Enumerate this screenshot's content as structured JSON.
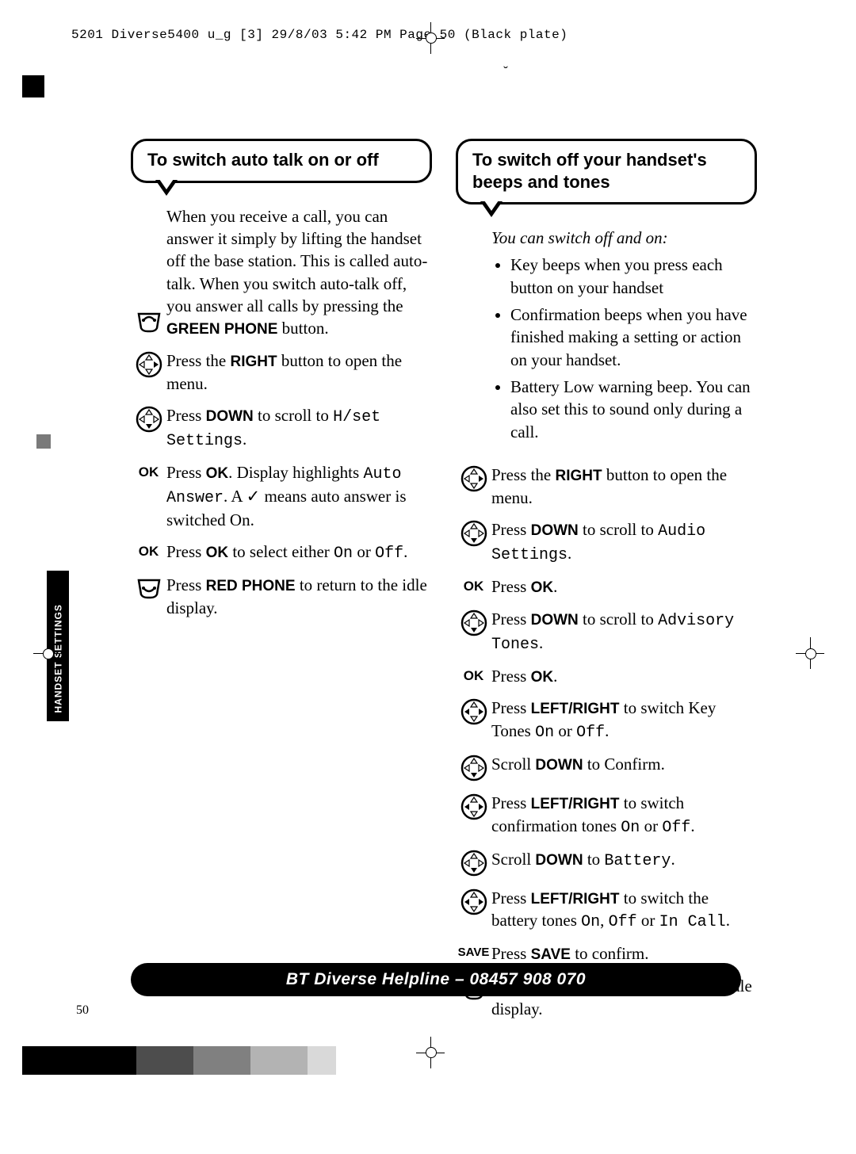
{
  "header_line": "5201 Diverse5400  u_g [3]  29/8/03  5:42 PM  Page 50   (Black plate)",
  "accent_mark": "˘",
  "side_tab": "HANDSET SETTINGS",
  "left": {
    "heading": "To switch auto talk on or off",
    "intro_parts": [
      "When you receive a call, you can answer it simply by lifting the handset off the base station. This is called auto-talk. When you switch auto-talk off, you answer all calls by pressing the ",
      "GREEN PHONE",
      " button."
    ],
    "s1": [
      "Press the ",
      "RIGHT",
      " button to open the menu."
    ],
    "s2a": "Press ",
    "s2b": "DOWN",
    "s2c": " to scroll to ",
    "s2d": "H/set Settings",
    "s3a": "Press ",
    "s3b": "OK",
    "s3c": ". Display highlights ",
    "s3d": "Auto Answer",
    "s3e": ". A ✓ means auto answer is switched On.",
    "s4a": "Press ",
    "s4b": "OK",
    "s4c": " to select either ",
    "s4d": "On",
    "s4e": " or ",
    "s4f": "Off",
    "s5a": "Press ",
    "s5b": "RED PHONE",
    "s5c": " to return to the idle display."
  },
  "right": {
    "heading": "To switch off your handset's beeps and tones",
    "intro_italic": "You can switch off and on:",
    "bullets": [
      "Key beeps when you press each button on your handset",
      "Confirmation beeps when you have finished making a setting or action on your handset.",
      "Battery Low warning beep. You can also set this to sound only during a call."
    ],
    "r1a": "Press the ",
    "r1b": "RIGHT",
    "r1c": " button to open the menu.",
    "r2a": "Press ",
    "r2b": "DOWN",
    "r2c": " to scroll to ",
    "r2d": "Audio Settings",
    "r3a": "Press ",
    "r3b": "OK",
    "r4a": "Press ",
    "r4b": "DOWN",
    "r4c": " to scroll to ",
    "r4d": "Advisory Tones",
    "r5a": "Press ",
    "r5b": "OK",
    "r6a": "Press ",
    "r6b": "LEFT/RIGHT",
    "r6c": " to switch Key Tones ",
    "r6d": "On",
    "r6e": " or ",
    "r6f": "Off",
    "r7a": "Scroll ",
    "r7b": "DOWN",
    "r7c": " to Confirm.",
    "r8a": "Press ",
    "r8b": "LEFT/RIGHT",
    "r8c": " to switch confirmation tones ",
    "r8d": "On",
    "r8e": " or ",
    "r8f": "Off",
    "r9a": "Scroll ",
    "r9b": "DOWN",
    "r9c": " to ",
    "r9d": "Battery",
    "r10a": "Press ",
    "r10b": "LEFT/RIGHT",
    "r10c": " to switch the battery tones ",
    "r10d": "On",
    "r10e": ", ",
    "r10f": "Off",
    "r10g": " or ",
    "r10h": "In Call",
    "r11a": "Press ",
    "r11b": "SAVE",
    "r11c": " to confirm.",
    "r12a": "Press ",
    "r12b": "RED PHONE",
    "r12c": " to return to the idle display."
  },
  "icon_labels": {
    "ok": "OK",
    "save": "SAVE"
  },
  "helpline": "BT Diverse Helpline – 08457 908 070",
  "page_number": "50",
  "colorbar": [
    "#000000",
    "#000000",
    "#000000",
    "#000000",
    "#4d4d4d",
    "#4d4d4d",
    "#808080",
    "#808080",
    "#b3b3b3",
    "#b3b3b3",
    "#d9d9d9"
  ]
}
